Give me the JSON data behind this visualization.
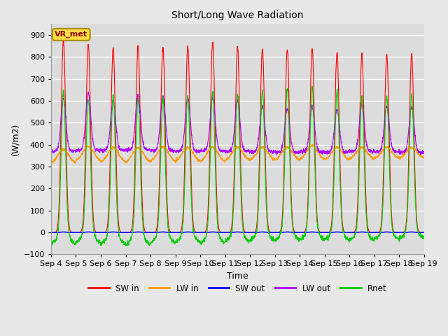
{
  "title": "Short/Long Wave Radiation",
  "ylabel": "(W/m2)",
  "xlabel": "Time",
  "ylim": [
    -100,
    950
  ],
  "background_color": "#e8e8e8",
  "plot_bg_color": "#dcdcdc",
  "station_label": "VR_met",
  "x_tick_labels": [
    "Sep 4",
    "Sep 5",
    "Sep 6",
    "Sep 7",
    "Sep 8",
    "Sep 9",
    "Sep 10",
    "Sep 11",
    "Sep 12",
    "Sep 13",
    "Sep 14",
    "Sep 15",
    "Sep 16",
    "Sep 17",
    "Sep 18",
    "Sep 19"
  ],
  "n_days": 15,
  "colors": {
    "SW_in": "#ff0000",
    "LW_in": "#ff9900",
    "SW_out": "#0000ff",
    "LW_out": "#aa00ff",
    "Rnet": "#00cc00"
  },
  "legend_labels": [
    "SW in",
    "LW in",
    "SW out",
    "LW out",
    "Rnet"
  ]
}
